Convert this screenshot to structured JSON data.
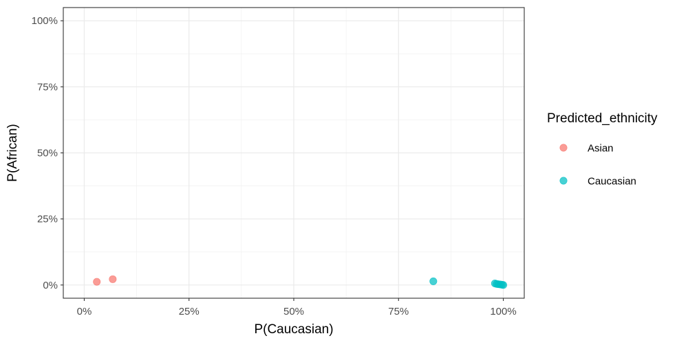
{
  "chart_data": {
    "type": "scatter",
    "xlabel": "P(Caucasian)",
    "ylabel": "P(African)",
    "xlim": [
      -0.05,
      1.05
    ],
    "ylim": [
      -0.05,
      1.05
    ],
    "x_ticks": [
      0,
      0.25,
      0.5,
      0.75,
      1
    ],
    "x_tick_labels": [
      "0%",
      "25%",
      "50%",
      "75%",
      "100%"
    ],
    "y_ticks": [
      0,
      0.25,
      0.5,
      0.75,
      1
    ],
    "y_tick_labels": [
      "0%",
      "25%",
      "50%",
      "75%",
      "100%"
    ],
    "grid": true,
    "legend": {
      "title": "Predicted_ethnicity",
      "position": "right"
    },
    "series": [
      {
        "name": "Asian",
        "color": "#F8766D",
        "points": [
          {
            "x": 0.03,
            "y": 0.012
          },
          {
            "x": 0.068,
            "y": 0.022
          }
        ]
      },
      {
        "name": "Caucasian",
        "color": "#00BFC4",
        "points": [
          {
            "x": 0.833,
            "y": 0.014
          },
          {
            "x": 0.98,
            "y": 0.006
          },
          {
            "x": 0.984,
            "y": 0.004
          },
          {
            "x": 0.988,
            "y": 0.003
          },
          {
            "x": 0.993,
            "y": 0.002
          },
          {
            "x": 0.997,
            "y": 0.001
          },
          {
            "x": 1.0,
            "y": 0.0
          }
        ]
      }
    ]
  }
}
